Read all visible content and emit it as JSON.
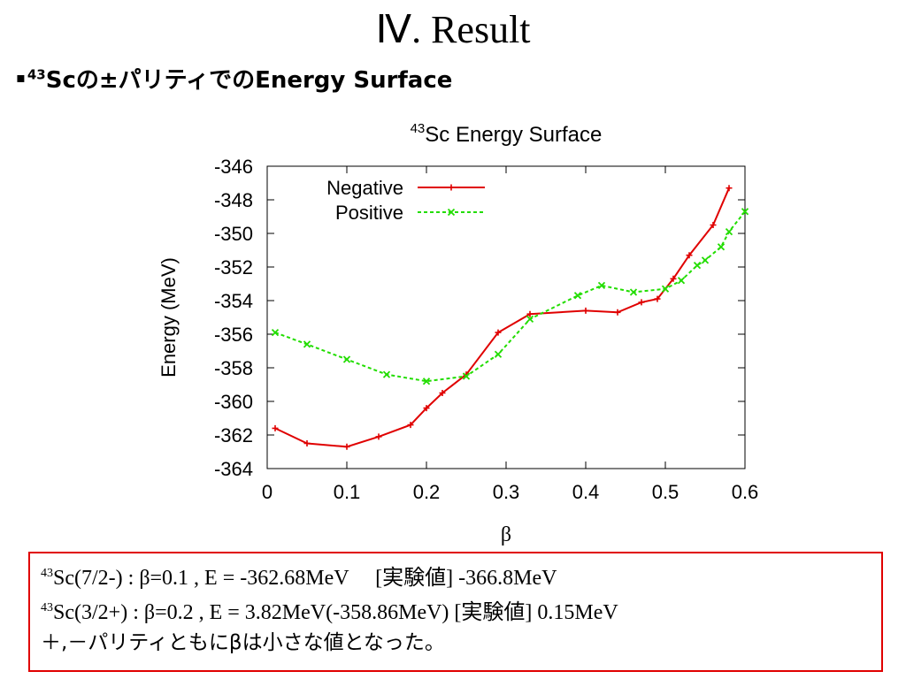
{
  "slide": {
    "title": "Ⅳ. Result",
    "bullet_mark": "▪",
    "bullet_sup": "43",
    "bullet_text": "Scの±パリティでのEnergy Surface"
  },
  "chart_data": {
    "type": "line",
    "title_sup": "43",
    "title": "Sc Energy Surface",
    "xlabel": "β",
    "ylabel": "Energy (MeV)",
    "xlim": [
      0,
      0.6
    ],
    "ylim": [
      -364,
      -346
    ],
    "xticks": [
      "0",
      "0.1",
      "0.2",
      "0.3",
      "0.4",
      "0.5",
      "0.6"
    ],
    "yticks": [
      "-346",
      "-348",
      "-350",
      "-352",
      "-354",
      "-356",
      "-358",
      "-360",
      "-362",
      "-364"
    ],
    "legend_position": "top-right",
    "series": [
      {
        "name": "Negative",
        "color": "#e00000",
        "style": "solid",
        "marker": "plus",
        "x": [
          0.01,
          0.05,
          0.1,
          0.14,
          0.18,
          0.2,
          0.22,
          0.25,
          0.29,
          0.33,
          0.4,
          0.44,
          0.47,
          0.49,
          0.51,
          0.53,
          0.56,
          0.58
        ],
        "y": [
          -361.6,
          -362.5,
          -362.7,
          -362.1,
          -361.4,
          -360.4,
          -359.5,
          -358.4,
          -355.9,
          -354.8,
          -354.6,
          -354.7,
          -354.1,
          -353.9,
          -352.7,
          -351.3,
          -349.5,
          -347.3
        ]
      },
      {
        "name": "Positive",
        "color": "#22dd00",
        "style": "dashed",
        "marker": "cross",
        "x": [
          0.01,
          0.05,
          0.1,
          0.15,
          0.2,
          0.25,
          0.29,
          0.33,
          0.39,
          0.42,
          0.46,
          0.5,
          0.52,
          0.54,
          0.55,
          0.57,
          0.58,
          0.6
        ],
        "y": [
          -355.9,
          -356.6,
          -357.5,
          -358.4,
          -358.8,
          -358.5,
          -357.2,
          -355.1,
          -353.7,
          -353.1,
          -353.5,
          -353.3,
          -352.8,
          -351.9,
          -351.6,
          -350.8,
          -349.9,
          -348.7
        ]
      }
    ]
  },
  "results": {
    "line1_sup": "43",
    "line1": "Sc(7/2-) : β=0.1 , E = -362.68MeV　 [実験値] -366.8MeV",
    "line2_sup": "43",
    "line2": "Sc(3/2+) : β=0.2 , E = 3.82MeV(-358.86MeV)  [実験値] 0.15MeV",
    "line3": "＋,－パリティともにβは小さな値となった。",
    "border_color": "#e00000"
  }
}
